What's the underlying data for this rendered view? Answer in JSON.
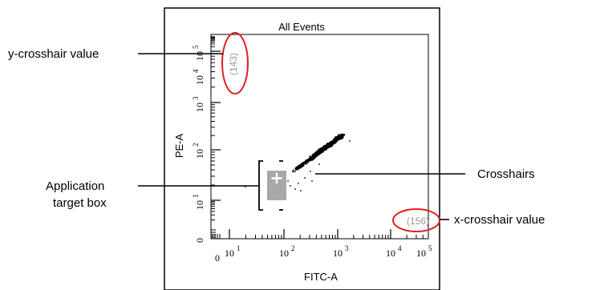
{
  "figure": {
    "title": "All Events",
    "x_axis_label": "FITC-A",
    "y_axis_label": "PE-A",
    "x_ticks": [
      {
        "base": "0",
        "exp": ""
      },
      {
        "base": "10",
        "exp": "1"
      },
      {
        "base": "10",
        "exp": "2"
      },
      {
        "base": "10",
        "exp": "3"
      },
      {
        "base": "10",
        "exp": "4"
      },
      {
        "base": "10",
        "exp": "5"
      }
    ],
    "y_ticks": [
      {
        "base": "0",
        "exp": ""
      },
      {
        "base": "10",
        "exp": "1"
      },
      {
        "base": "10",
        "exp": "2"
      },
      {
        "base": "10",
        "exp": "3"
      },
      {
        "base": "10",
        "exp": "4"
      },
      {
        "base": "10",
        "exp": "5"
      }
    ],
    "x_crosshair_readout": "(156)",
    "y_crosshair_readout": "(143)"
  },
  "callouts": {
    "y_crosshair_value": "y-crosshair value",
    "application_target_box_line1": "Application",
    "application_target_box_line2": "target box",
    "crosshairs": "Crosshairs",
    "x_crosshair_value": "x-crosshair value"
  },
  "colors": {
    "highlight_ellipse": "#e0201f",
    "target_box": "#a8a8a8",
    "readout_text": "#9a9a9a"
  }
}
